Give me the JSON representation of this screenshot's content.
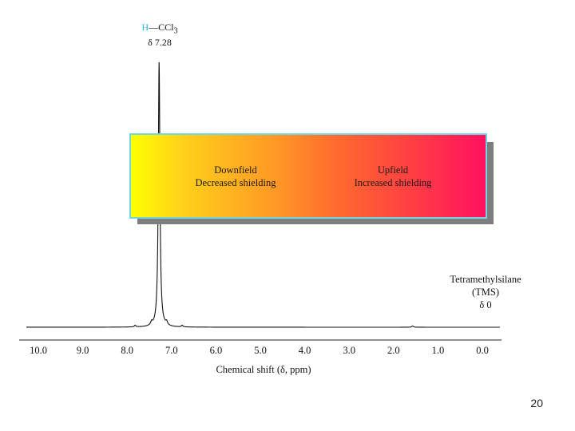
{
  "chart_data": {
    "type": "line",
    "xlabel": "Chemical shift (δ, ppm)",
    "xlim": [
      10.0,
      0.0
    ],
    "x_reversed": true,
    "grid": false,
    "x_ticks": [
      10.0,
      9.0,
      8.0,
      7.0,
      6.0,
      5.0,
      4.0,
      3.0,
      2.0,
      1.0,
      0.0
    ],
    "x_tick_labels": [
      "10.0",
      "9.0",
      "8.0",
      "7.0",
      "6.0",
      "5.0",
      "4.0",
      "3.0",
      "2.0",
      "1.0",
      "0.0"
    ],
    "peaks": [
      {
        "x": 7.28,
        "intensity": 1.0
      },
      {
        "x": 7.45,
        "intensity": 0.012
      },
      {
        "x": 7.11,
        "intensity": 0.012
      },
      {
        "x": 7.82,
        "intensity": 0.006
      },
      {
        "x": 6.76,
        "intensity": 0.006
      },
      {
        "x": 1.57,
        "intensity": 0.005
      }
    ],
    "annotations": {
      "peak": {
        "compound_h": "H",
        "compound_rest": "—CCl",
        "subscript": "3",
        "shift": "δ 7.28"
      },
      "reference": {
        "line1": "Tetramethylsilane",
        "line2": "(TMS)",
        "line3": "δ 0"
      }
    },
    "regions": {
      "downfield": {
        "title": "Downfield",
        "subtitle": "Decreased shielding"
      },
      "upfield": {
        "title": "Upfield",
        "subtitle": "Increased shielding"
      }
    },
    "colors": {
      "gradient_start": "#ffff00",
      "gradient_end": "#ff1060",
      "box_border": "#6fd6e6",
      "peak_h": "#2fb8e0"
    }
  },
  "slide": {
    "number": "20"
  }
}
